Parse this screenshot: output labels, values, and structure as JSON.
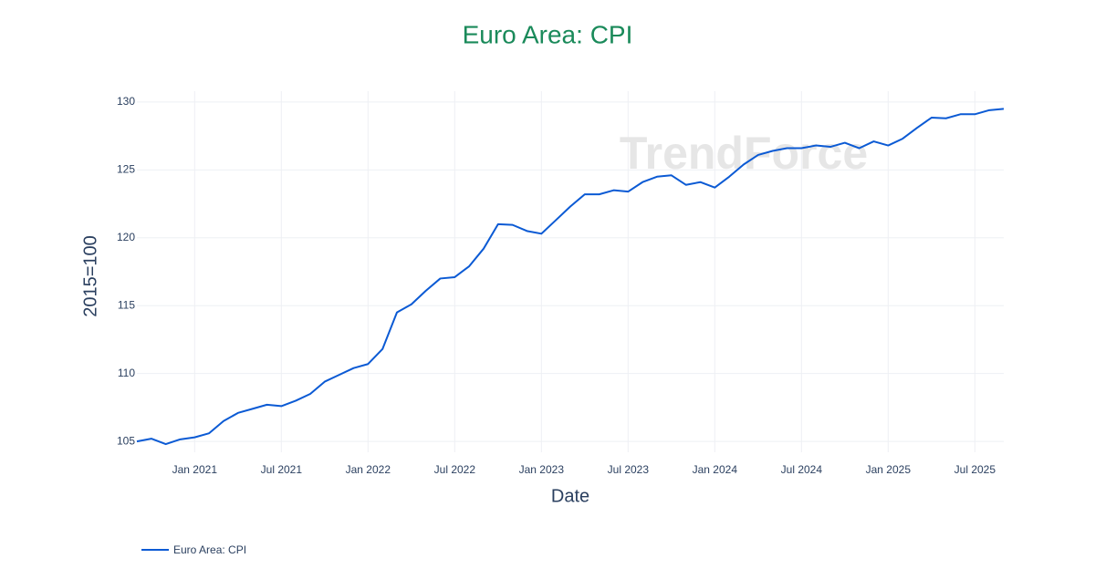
{
  "chart_data": {
    "type": "line",
    "title": "Euro Area: CPI",
    "x_label": "Date",
    "y_label": "2015=100",
    "watermark": "TrendForce",
    "x": [
      "2020-09",
      "2020-10",
      "2020-11",
      "2020-12",
      "2021-01",
      "2021-02",
      "2021-03",
      "2021-04",
      "2021-05",
      "2021-06",
      "2021-07",
      "2021-08",
      "2021-09",
      "2021-10",
      "2021-11",
      "2021-12",
      "2022-01",
      "2022-02",
      "2022-03",
      "2022-04",
      "2022-05",
      "2022-06",
      "2022-07",
      "2022-08",
      "2022-09",
      "2022-10",
      "2022-11",
      "2022-12",
      "2023-01",
      "2023-02",
      "2023-03",
      "2023-04",
      "2023-05",
      "2023-06",
      "2023-07",
      "2023-08",
      "2023-09",
      "2023-10",
      "2023-11",
      "2023-12",
      "2024-01",
      "2024-02",
      "2024-03",
      "2024-04",
      "2024-05",
      "2024-06",
      "2024-07",
      "2024-08",
      "2024-09",
      "2024-10",
      "2024-11",
      "2024-12",
      "2025-01",
      "2025-02",
      "2025-03",
      "2025-04",
      "2025-05",
      "2025-06",
      "2025-07",
      "2025-08",
      "2025-09"
    ],
    "series": [
      {
        "name": "Euro Area: CPI",
        "color": "#0b5ad4",
        "values": [
          105.0,
          105.2,
          104.8,
          105.15,
          105.3,
          105.6,
          106.5,
          107.1,
          107.4,
          107.7,
          107.6,
          108.0,
          108.5,
          109.4,
          109.9,
          110.4,
          110.7,
          111.8,
          114.5,
          115.1,
          116.1,
          117.0,
          117.1,
          117.9,
          119.2,
          121.0,
          120.95,
          120.5,
          120.3,
          121.3,
          122.3,
          123.2,
          123.2,
          123.5,
          123.4,
          124.1,
          124.5,
          124.6,
          123.9,
          124.1,
          123.7,
          124.5,
          125.4,
          126.1,
          126.4,
          126.6,
          126.6,
          126.8,
          126.7,
          127.0,
          126.6,
          127.1,
          126.8,
          127.3,
          128.1,
          128.85,
          128.8,
          129.1,
          129.1,
          129.4,
          129.5
        ]
      }
    ],
    "xlim": [
      "2020-09",
      "2025-09"
    ],
    "xticks": [
      {
        "value": "2021-01",
        "label": "Jan 2021"
      },
      {
        "value": "2021-07",
        "label": "Jul 2021"
      },
      {
        "value": "2022-01",
        "label": "Jan 2022"
      },
      {
        "value": "2022-07",
        "label": "Jul 2022"
      },
      {
        "value": "2023-01",
        "label": "Jan 2023"
      },
      {
        "value": "2023-07",
        "label": "Jul 2023"
      },
      {
        "value": "2024-01",
        "label": "Jan 2024"
      },
      {
        "value": "2024-07",
        "label": "Jul 2024"
      },
      {
        "value": "2025-01",
        "label": "Jan 2025"
      },
      {
        "value": "2025-07",
        "label": "Jul 2025"
      }
    ],
    "ylim": [
      104.2,
      130.8
    ],
    "yticks": [
      105,
      110,
      115,
      120,
      125,
      130
    ],
    "grid": true,
    "legend": "bottom-left"
  }
}
